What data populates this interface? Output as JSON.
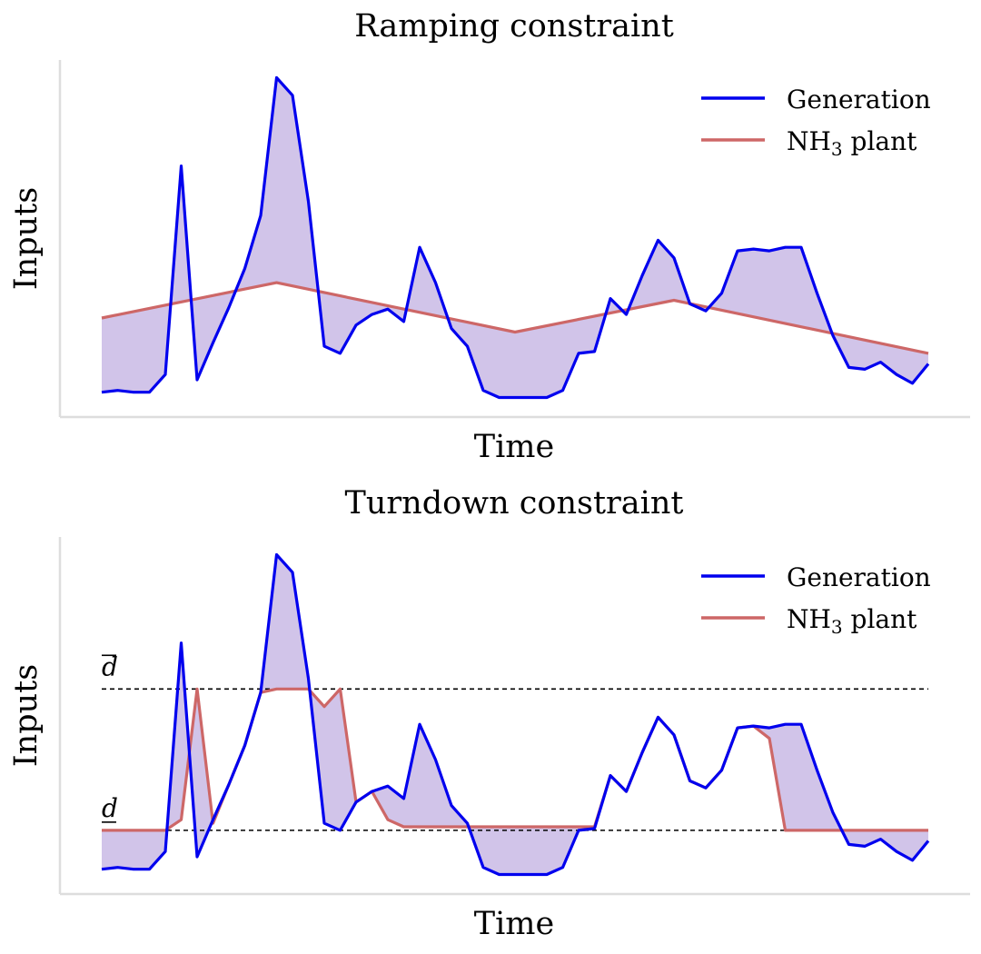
{
  "chart_data": [
    {
      "type": "line",
      "title": "Ramping constraint",
      "xlabel": "Time",
      "ylabel": "Inputs",
      "x_ticks_shown": false,
      "y_ticks_shown": false,
      "ylim": [
        0,
        100
      ],
      "legend": {
        "placement": "top-right",
        "entries": [
          {
            "label": "Generation",
            "color": "#0000ee"
          },
          {
            "label": "NH",
            "sub": "3",
            "suffix": " plant",
            "color": "#cd6767"
          }
        ]
      },
      "fill_between": {
        "color": "#b39ddb"
      },
      "series": [
        {
          "name": "Generation",
          "color": "#0000ee",
          "x": [
            0,
            1,
            2,
            3,
            4,
            5,
            6,
            7,
            8,
            9,
            10,
            11,
            12,
            13,
            14,
            15,
            16,
            17,
            18,
            19,
            20,
            21,
            22,
            23,
            24,
            25,
            26,
            27,
            28,
            29,
            30,
            31,
            32,
            33,
            34,
            35,
            36,
            37,
            38,
            39,
            40,
            41,
            42,
            43,
            44,
            45,
            46,
            47,
            48,
            49,
            50,
            51,
            52
          ],
          "values": [
            6,
            6.5,
            6,
            6,
            11,
            70,
            9.5,
            20,
            30,
            41,
            56,
            95,
            90,
            60,
            19,
            17,
            25,
            28,
            29.5,
            26,
            47,
            37,
            24,
            19,
            6.5,
            4.5,
            4.5,
            4.5,
            4.5,
            6.5,
            17,
            17.5,
            32.5,
            28,
            39,
            49,
            44,
            31,
            29,
            34,
            46,
            46.5,
            46,
            47,
            47,
            34,
            22,
            13,
            12.5,
            14.5,
            11,
            8.5,
            14
          ]
        },
        {
          "name": "NH3 plant",
          "color": "#cd6767",
          "x": [
            0,
            11,
            26,
            36,
            52
          ],
          "values": [
            27,
            37,
            23,
            32,
            17
          ]
        }
      ]
    },
    {
      "type": "line",
      "title": "Turndown constraint",
      "xlabel": "Time",
      "ylabel": "Inputs",
      "x_ticks_shown": false,
      "y_ticks_shown": false,
      "ylim": [
        0,
        100
      ],
      "legend": {
        "placement": "top-right",
        "entries": [
          {
            "label": "Generation",
            "color": "#0000ee"
          },
          {
            "label": "NH",
            "sub": "3",
            "suffix": " plant",
            "color": "#cd6767"
          }
        ]
      },
      "fill_between": {
        "color": "#b39ddb"
      },
      "reference_lines": [
        {
          "label": "d",
          "bar": "over",
          "value": 57
        },
        {
          "label": "d",
          "bar": "under",
          "value": 17
        }
      ],
      "series": [
        {
          "name": "Generation",
          "color": "#0000ee",
          "x": [
            0,
            1,
            2,
            3,
            4,
            5,
            6,
            7,
            8,
            9,
            10,
            11,
            12,
            13,
            14,
            15,
            16,
            17,
            18,
            19,
            20,
            21,
            22,
            23,
            24,
            25,
            26,
            27,
            28,
            29,
            30,
            31,
            32,
            33,
            34,
            35,
            36,
            37,
            38,
            39,
            40,
            41,
            42,
            43,
            44,
            45,
            46,
            47,
            48,
            49,
            50,
            51,
            52
          ],
          "values": [
            6,
            6.5,
            6,
            6,
            11,
            70,
            9.5,
            20,
            30,
            41,
            56,
            95,
            90,
            60,
            19,
            17,
            25,
            28,
            29.5,
            26,
            47,
            37,
            24,
            19,
            6.5,
            4.5,
            4.5,
            4.5,
            4.5,
            6.5,
            17,
            17.5,
            32.5,
            28,
            39,
            49,
            44,
            31,
            29,
            34,
            46,
            46.5,
            46,
            47,
            47,
            34,
            22,
            13,
            12.5,
            14.5,
            11,
            8.5,
            14
          ]
        },
        {
          "name": "NH3 plant",
          "color": "#cd6767",
          "x": [
            0,
            1,
            2,
            3,
            4,
            5,
            6,
            7,
            8,
            9,
            10,
            11,
            12,
            13,
            14,
            15,
            16,
            17,
            18,
            19,
            20,
            21,
            22,
            23,
            24,
            25,
            26,
            27,
            28,
            29,
            30,
            31,
            32,
            33,
            34,
            35,
            36,
            37,
            38,
            39,
            40,
            41,
            42,
            43,
            44,
            45,
            46,
            47,
            48,
            49,
            50,
            51,
            52
          ],
          "values": [
            17,
            17,
            17,
            17,
            17,
            20,
            57,
            19,
            30,
            41,
            56,
            57,
            57,
            57,
            52,
            57,
            25,
            28,
            20,
            18,
            18,
            18,
            18,
            18,
            18,
            18,
            18,
            18,
            18,
            18,
            18,
            18,
            32.5,
            28,
            39,
            49,
            44,
            31,
            29,
            34,
            46,
            46.5,
            43,
            17,
            17,
            17,
            17,
            17,
            17,
            17,
            17,
            17,
            17
          ]
        }
      ]
    }
  ]
}
